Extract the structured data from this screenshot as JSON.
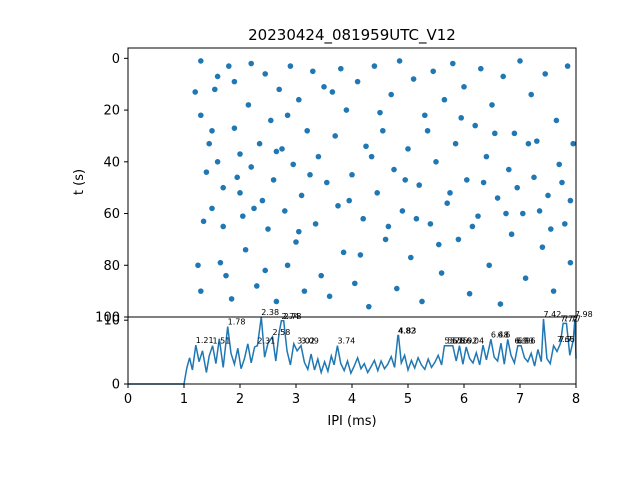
{
  "chart_data": [
    {
      "type": "scatter",
      "title": "20230424_081959UTC_V12",
      "xlabel": "",
      "ylabel": "t (s)",
      "xlim": [
        0,
        8
      ],
      "ylim": [
        100,
        -4
      ],
      "y_inverted": true,
      "yticks": [
        "0",
        "20",
        "40",
        "60",
        "80",
        "100"
      ],
      "color": "#1f77b4",
      "series": [
        {
          "points": [
            [
              1.2,
              13
            ],
            [
              1.25,
              80
            ],
            [
              1.3,
              90
            ],
            [
              1.3,
              1
            ],
            [
              1.3,
              22
            ],
            [
              1.4,
              44
            ],
            [
              1.45,
              33
            ],
            [
              1.5,
              28
            ],
            [
              1.5,
              58
            ],
            [
              1.6,
              7
            ],
            [
              1.6,
              40
            ],
            [
              1.7,
              50
            ],
            [
              1.7,
              65
            ],
            [
              1.75,
              84
            ],
            [
              1.8,
              3
            ],
            [
              1.85,
              93
            ],
            [
              1.9,
              9
            ],
            [
              1.9,
              27
            ],
            [
              2.0,
              37
            ],
            [
              2.0,
              52
            ],
            [
              2.05,
              61
            ],
            [
              2.1,
              74
            ],
            [
              2.15,
              18
            ],
            [
              2.2,
              2
            ],
            [
              2.2,
              42
            ],
            [
              2.3,
              88
            ],
            [
              2.35,
              33
            ],
            [
              2.4,
              55
            ],
            [
              2.45,
              6
            ],
            [
              2.5,
              66
            ],
            [
              2.55,
              24
            ],
            [
              2.6,
              47
            ],
            [
              2.65,
              94
            ],
            [
              2.7,
              12
            ],
            [
              2.75,
              35
            ],
            [
              2.8,
              59
            ],
            [
              2.85,
              80
            ],
            [
              2.9,
              3
            ],
            [
              2.95,
              41
            ],
            [
              3.0,
              71
            ],
            [
              3.05,
              16
            ],
            [
              3.1,
              53
            ],
            [
              3.15,
              90
            ],
            [
              3.2,
              28
            ],
            [
              3.3,
              5
            ],
            [
              3.35,
              64
            ],
            [
              3.4,
              38
            ],
            [
              3.5,
              11
            ],
            [
              3.55,
              48
            ],
            [
              3.6,
              92
            ],
            [
              3.7,
              30
            ],
            [
              3.75,
              57
            ],
            [
              3.8,
              4
            ],
            [
              3.85,
              75
            ],
            [
              3.9,
              20
            ],
            [
              4.0,
              45
            ],
            [
              4.05,
              87
            ],
            [
              4.1,
              9
            ],
            [
              4.2,
              62
            ],
            [
              4.25,
              34
            ],
            [
              4.3,
              96
            ],
            [
              4.4,
              3
            ],
            [
              4.45,
              52
            ],
            [
              4.55,
              28
            ],
            [
              4.6,
              70
            ],
            [
              4.7,
              14
            ],
            [
              4.75,
              43
            ],
            [
              4.8,
              89
            ],
            [
              4.85,
              1
            ],
            [
              4.9,
              59
            ],
            [
              5.0,
              35
            ],
            [
              5.05,
              77
            ],
            [
              5.1,
              8
            ],
            [
              5.2,
              49
            ],
            [
              5.25,
              94
            ],
            [
              5.3,
              22
            ],
            [
              5.4,
              64
            ],
            [
              5.45,
              5
            ],
            [
              5.5,
              40
            ],
            [
              5.6,
              83
            ],
            [
              5.65,
              16
            ],
            [
              5.7,
              56
            ],
            [
              5.8,
              2
            ],
            [
              5.85,
              33
            ],
            [
              5.9,
              70
            ],
            [
              6.0,
              11
            ],
            [
              6.05,
              47
            ],
            [
              6.1,
              91
            ],
            [
              6.2,
              26
            ],
            [
              6.25,
              61
            ],
            [
              6.3,
              4
            ],
            [
              6.4,
              38
            ],
            [
              6.45,
              80
            ],
            [
              6.5,
              18
            ],
            [
              6.6,
              54
            ],
            [
              6.65,
              95
            ],
            [
              6.7,
              7
            ],
            [
              6.8,
              43
            ],
            [
              6.85,
              68
            ],
            [
              6.9,
              29
            ],
            [
              7.0,
              1
            ],
            [
              7.05,
              60
            ],
            [
              7.1,
              85
            ],
            [
              7.2,
              14
            ],
            [
              7.25,
              46
            ],
            [
              7.3,
              32
            ],
            [
              7.4,
              73
            ],
            [
              7.45,
              6
            ],
            [
              7.5,
              53
            ],
            [
              7.6,
              90
            ],
            [
              7.65,
              24
            ],
            [
              7.7,
              41
            ],
            [
              7.8,
              64
            ],
            [
              7.85,
              3
            ],
            [
              7.9,
              79
            ],
            [
              7.95,
              33
            ],
            [
              1.35,
              63
            ],
            [
              1.55,
              12
            ],
            [
              1.65,
              79
            ],
            [
              1.95,
              46
            ],
            [
              2.25,
              58
            ],
            [
              2.45,
              82
            ],
            [
              2.65,
              36
            ],
            [
              2.85,
              22
            ],
            [
              3.05,
              67
            ],
            [
              3.25,
              45
            ],
            [
              3.45,
              84
            ],
            [
              3.65,
              13
            ],
            [
              3.95,
              55
            ],
            [
              4.15,
              76
            ],
            [
              4.35,
              38
            ],
            [
              4.5,
              21
            ],
            [
              4.65,
              65
            ],
            [
              4.95,
              47
            ],
            [
              5.15,
              62
            ],
            [
              5.35,
              28
            ],
            [
              5.55,
              72
            ],
            [
              5.75,
              52
            ],
            [
              5.95,
              23
            ],
            [
              6.15,
              65
            ],
            [
              6.35,
              48
            ],
            [
              6.55,
              29
            ],
            [
              6.75,
              60
            ],
            [
              6.95,
              50
            ],
            [
              7.15,
              33
            ],
            [
              7.35,
              59
            ],
            [
              7.55,
              66
            ],
            [
              7.75,
              48
            ],
            [
              7.9,
              55
            ]
          ]
        }
      ]
    },
    {
      "type": "line",
      "title": "",
      "xlabel": "IPI (ms)",
      "ylabel": "",
      "xlim": [
        0,
        8
      ],
      "ylim": [
        0,
        10.5
      ],
      "xticks": [
        "0",
        "1",
        "2",
        "3",
        "4",
        "5",
        "6",
        "7",
        "8"
      ],
      "yticks": [
        "0",
        "10"
      ],
      "color": "#1f77b4",
      "series": [
        {
          "x": [
            0,
            1.0,
            1.05,
            1.1,
            1.15,
            1.21,
            1.27,
            1.33,
            1.4,
            1.45,
            1.51,
            1.57,
            1.63,
            1.7,
            1.78,
            1.84,
            1.9,
            1.96,
            2.02,
            2.08,
            2.14,
            2.2,
            2.26,
            2.31,
            2.38,
            2.44,
            2.5,
            2.58,
            2.64,
            2.7,
            2.74,
            2.78,
            2.84,
            2.9,
            2.96,
            3.02,
            3.09,
            3.15,
            3.21,
            3.27,
            3.33,
            3.39,
            3.45,
            3.51,
            3.57,
            3.63,
            3.68,
            3.74,
            3.8,
            3.86,
            3.92,
            3.98,
            4.04,
            4.1,
            4.16,
            4.22,
            4.28,
            4.34,
            4.4,
            4.46,
            4.52,
            4.58,
            4.64,
            4.7,
            4.76,
            4.82,
            4.83,
            4.88,
            4.94,
            5.0,
            5.06,
            5.12,
            5.18,
            5.24,
            5.3,
            5.36,
            5.42,
            5.48,
            5.54,
            5.6,
            5.65,
            5.7,
            5.75,
            5.8,
            5.86,
            5.92,
            5.98,
            6.04,
            6.1,
            6.16,
            6.22,
            6.28,
            6.34,
            6.4,
            6.48,
            6.54,
            6.6,
            6.66,
            6.72,
            6.78,
            6.84,
            6.9,
            6.96,
            7.02,
            7.08,
            7.14,
            7.2,
            7.26,
            7.32,
            7.38,
            7.42,
            7.48,
            7.54,
            7.6,
            7.66,
            7.72,
            7.77,
            7.83,
            7.89,
            7.95,
            7.98,
            8.0
          ],
          "y": [
            0,
            0,
            2.5,
            4.1,
            2.2,
            6.1,
            3.5,
            5.2,
            1.8,
            4.4,
            6.0,
            3.2,
            7.1,
            2.6,
            9.0,
            4.8,
            3.1,
            5.6,
            2.4,
            4.0,
            6.3,
            3.3,
            5.8,
            6.0,
            10.5,
            4.2,
            6.4,
            7.4,
            3.6,
            8.1,
            9.9,
            9.9,
            5.2,
            3.0,
            6.3,
            5.2,
            6.0,
            3.4,
            2.3,
            4.7,
            2.2,
            3.9,
            1.8,
            3.5,
            2.0,
            4.4,
            3.0,
            6.0,
            3.2,
            2.1,
            3.6,
            1.7,
            2.8,
            4.1,
            2.4,
            3.2,
            1.8,
            2.7,
            3.7,
            2.1,
            3.6,
            2.4,
            3.1,
            4.3,
            2.6,
            7.6,
            7.6,
            3.3,
            4.5,
            2.2,
            3.7,
            2.5,
            4.1,
            3.0,
            2.3,
            3.9,
            2.6,
            3.4,
            4.5,
            3.0,
            6.0,
            6.0,
            6.0,
            6.0,
            3.6,
            6.0,
            3.1,
            5.8,
            4.0,
            3.3,
            4.9,
            3.0,
            6.1,
            3.8,
            7.0,
            4.2,
            3.6,
            6.4,
            3.1,
            7.0,
            4.5,
            3.3,
            6.0,
            6.0,
            4.1,
            3.5,
            4.8,
            2.8,
            5.4,
            3.5,
            10.2,
            4.0,
            3.2,
            6.0,
            5.1,
            6.3,
            9.5,
            9.5,
            4.5,
            6.8,
            10.2,
            4.0
          ],
          "annotations": [
            {
              "x": 1.21,
              "y": 6.1,
              "label": "1.21"
            },
            {
              "x": 1.51,
              "y": 6.0,
              "label": "1.51"
            },
            {
              "x": 1.78,
              "y": 9.0,
              "label": "1.78"
            },
            {
              "x": 2.31,
              "y": 6.0,
              "label": "2.31"
            },
            {
              "x": 2.38,
              "y": 10.5,
              "label": "2.38"
            },
            {
              "x": 2.58,
              "y": 7.4,
              "label": "2.58"
            },
            {
              "x": 2.74,
              "y": 9.9,
              "label": "2.74"
            },
            {
              "x": 2.78,
              "y": 9.9,
              "label": "2.78"
            },
            {
              "x": 3.02,
              "y": 6.0,
              "label": "3.02"
            },
            {
              "x": 3.09,
              "y": 6.0,
              "label": "3.09"
            },
            {
              "x": 3.74,
              "y": 6.0,
              "label": "3.74"
            },
            {
              "x": 4.82,
              "y": 7.6,
              "label": "4.82"
            },
            {
              "x": 4.83,
              "y": 7.6,
              "label": "4.83"
            },
            {
              "x": 5.65,
              "y": 6.0,
              "label": "5.65"
            },
            {
              "x": 5.7,
              "y": 6.0,
              "label": "5.7"
            },
            {
              "x": 5.75,
              "y": 6.0,
              "label": "5.75"
            },
            {
              "x": 5.8,
              "y": 6.0,
              "label": "5.8"
            },
            {
              "x": 5.92,
              "y": 6.0,
              "label": "5.92"
            },
            {
              "x": 6.04,
              "y": 6.0,
              "label": "6.04"
            },
            {
              "x": 6.48,
              "y": 7.0,
              "label": "6.48"
            },
            {
              "x": 6.6,
              "y": 7.0,
              "label": "6.6"
            },
            {
              "x": 6.9,
              "y": 6.0,
              "label": "6.9"
            },
            {
              "x": 6.93,
              "y": 6.0,
              "label": "6.93"
            },
            {
              "x": 6.96,
              "y": 6.0,
              "label": "6.96"
            },
            {
              "x": 7.42,
              "y": 10.2,
              "label": "7.42"
            },
            {
              "x": 7.66,
              "y": 6.3,
              "label": "7.66"
            },
            {
              "x": 7.7,
              "y": 6.3,
              "label": "7.7"
            },
            {
              "x": 7.72,
              "y": 9.5,
              "label": "7.72"
            },
            {
              "x": 7.77,
              "y": 9.5,
              "label": "7.77"
            },
            {
              "x": 7.98,
              "y": 10.2,
              "label": "7.98"
            }
          ]
        }
      ]
    }
  ]
}
